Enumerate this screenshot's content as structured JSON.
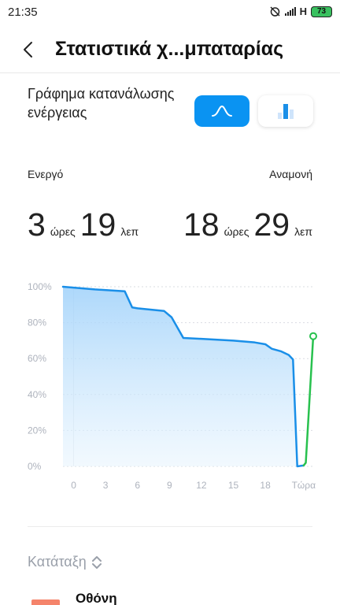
{
  "status_bar": {
    "time": "21:35",
    "network": "H",
    "battery": "73"
  },
  "header": {
    "title": "Στατιστικά χ...μπαταρίας"
  },
  "graph_section": {
    "label": "Γράφημα κατανάλωσης ενέργειας",
    "toggle_curve_icon": "curve-icon",
    "toggle_bar_icon": "bar-chart-icon",
    "accent_color": "#0a93f2"
  },
  "usage": {
    "active_label": "Ενεργό",
    "standby_label": "Αναμονή",
    "active_hours": "3",
    "active_hours_unit": "ώρες",
    "active_minutes": "19",
    "active_minutes_unit": "λεπ",
    "standby_hours": "18",
    "standby_hours_unit": "ώρες",
    "standby_minutes": "29",
    "standby_minutes_unit": "λεπ"
  },
  "chart_data": {
    "type": "line",
    "y_ticks": [
      "100%",
      "80%",
      "60%",
      "40%",
      "20%",
      "0%"
    ],
    "x_ticks": [
      "0",
      "3",
      "6",
      "9",
      "12",
      "15",
      "18",
      "Τώρα"
    ],
    "ylim": [
      0,
      100
    ],
    "xlim": [
      -1,
      22.5
    ],
    "grid": true,
    "series": [
      {
        "color": "#1a8fe8",
        "fill": true,
        "points": [
          [
            -1,
            100
          ],
          [
            0,
            99.5
          ],
          [
            1,
            99
          ],
          [
            2,
            98.5
          ],
          [
            4.8,
            97.5
          ],
          [
            5.5,
            88.5
          ],
          [
            6,
            88
          ],
          [
            8.5,
            86.5
          ],
          [
            9.2,
            83
          ],
          [
            10.3,
            71.5
          ],
          [
            12,
            71
          ],
          [
            15,
            70
          ],
          [
            17,
            69
          ],
          [
            18,
            68
          ],
          [
            18.6,
            65.5
          ],
          [
            19.5,
            64
          ],
          [
            20.2,
            62
          ],
          [
            20.6,
            59.5
          ],
          [
            21,
            0
          ],
          [
            21.6,
            0.5
          ]
        ]
      },
      {
        "color": "#28c14e",
        "fill": false,
        "end_marker": true,
        "points": [
          [
            21.6,
            0.5
          ],
          [
            21.8,
            2
          ],
          [
            22.5,
            72.5
          ]
        ]
      }
    ]
  },
  "sort": {
    "label": "Κατάταξη",
    "icon": "sort-chevrons-icon"
  },
  "list": {
    "first_item_title": "Οθόνη",
    "first_item_color": "#f5846b"
  }
}
